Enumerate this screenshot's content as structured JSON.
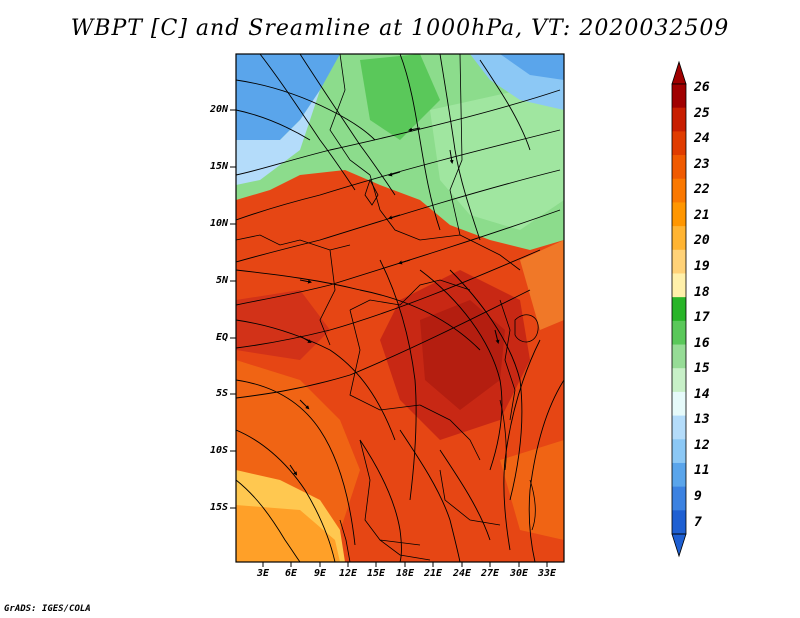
{
  "title": "WBPT [C] and Sreamline at 1000hPa, VT: 2020032509",
  "y_axis": {
    "labels": [
      "20N",
      "15N",
      "10N",
      "5N",
      "EQ",
      "5S",
      "10S",
      "15S"
    ]
  },
  "x_axis": {
    "labels": [
      "3E",
      "6E",
      "9E",
      "12E",
      "15E",
      "18E",
      "21E",
      "24E",
      "27E",
      "30E",
      "33E"
    ]
  },
  "colorbar": {
    "labels": [
      "26",
      "25",
      "24",
      "23",
      "22",
      "21",
      "20",
      "19",
      "18",
      "17",
      "16",
      "15",
      "14",
      "13",
      "12",
      "11",
      "9",
      "7"
    ],
    "colors": [
      "#a00000",
      "#c81e00",
      "#e03c00",
      "#f05a00",
      "#fa7800",
      "#ff9600",
      "#ffb432",
      "#ffd278",
      "#fff0aa",
      "#28b428",
      "#5ac85a",
      "#96dc96",
      "#c8f0c8",
      "#e6fafa",
      "#b4dcfa",
      "#8cc8f5",
      "#5aa5eb",
      "#3c82e1",
      "#1e5fd2"
    ]
  },
  "regions": {
    "sahara_blue": "#5aa5eb",
    "sahel_green": "#8cdc8c",
    "equatorial": "#e64614",
    "core": "#c82814",
    "south_orange": "#f06414",
    "southwest_yellow": "#ffc850"
  },
  "footer": "GrADS: IGES/COLA"
}
